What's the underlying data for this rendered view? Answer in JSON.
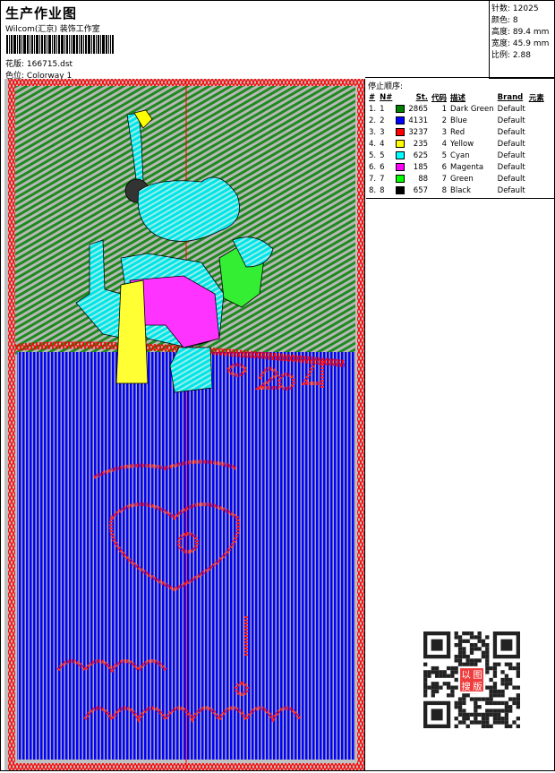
{
  "header": {
    "title": "生产作业图",
    "studio": "Wilcom(汇京) 装饰工作室",
    "file_label": "花版:",
    "file_value": "166715.dst",
    "colorway_label": "色位:",
    "colorway_value": "Colorway 1"
  },
  "info": [
    {
      "label": "针数:",
      "value": "12025"
    },
    {
      "label": "颜色:",
      "value": "8"
    },
    {
      "label": "高度:",
      "value": "89.4 mm"
    },
    {
      "label": "宽度:",
      "value": "45.9 mm"
    },
    {
      "label": "比例:",
      "value": "2.88"
    }
  ],
  "stop_sequence": {
    "heading": "停止顺序:",
    "columns": [
      "#",
      "N#",
      "St.",
      "代码",
      "描述",
      "Brand",
      "元素"
    ],
    "rows": [
      {
        "idx": "1.",
        "n": "1",
        "color": "#008000",
        "st": "2865",
        "code": "1",
        "desc": "Dark Green",
        "brand": "Default"
      },
      {
        "idx": "2.",
        "n": "2",
        "color": "#0000ff",
        "st": "4131",
        "code": "2",
        "desc": "Blue",
        "brand": "Default"
      },
      {
        "idx": "3.",
        "n": "3",
        "color": "#ff0000",
        "st": "3237",
        "code": "3",
        "desc": "Red",
        "brand": "Default"
      },
      {
        "idx": "4.",
        "n": "4",
        "color": "#ffff00",
        "st": "235",
        "code": "4",
        "desc": "Yellow",
        "brand": "Default"
      },
      {
        "idx": "5.",
        "n": "5",
        "color": "#00ffff",
        "st": "625",
        "code": "5",
        "desc": "Cyan",
        "brand": "Default"
      },
      {
        "idx": "6.",
        "n": "6",
        "color": "#ff00ff",
        "st": "185",
        "code": "6",
        "desc": "Magenta",
        "brand": "Default"
      },
      {
        "idx": "7.",
        "n": "7",
        "color": "#00ff00",
        "st": "88",
        "code": "7",
        "desc": "Green",
        "brand": "Default"
      },
      {
        "idx": "8.",
        "n": "8",
        "color": "#000000",
        "st": "657",
        "code": "8",
        "desc": "Black",
        "brand": "Default"
      }
    ]
  },
  "qr_logo": "以图搜版"
}
